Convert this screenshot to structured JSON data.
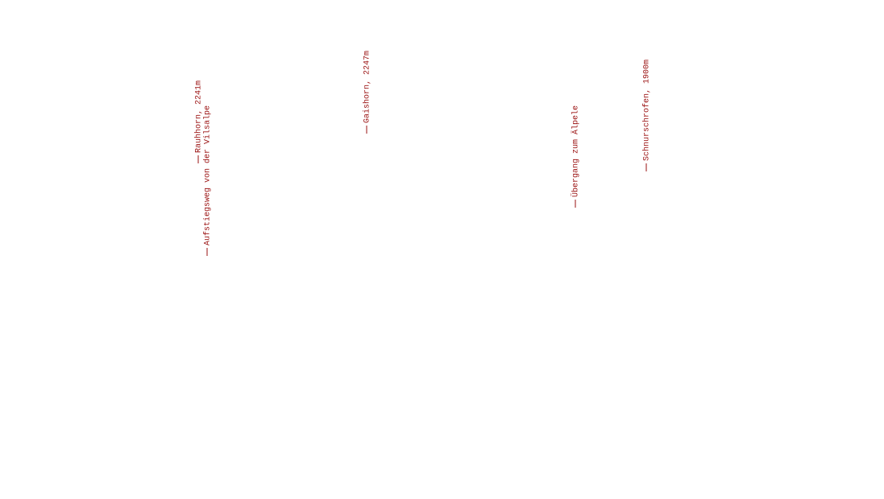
{
  "labels": [
    {
      "text": "Rauhhorn, 2241m"
    },
    {
      "text": "Aufstiegsweg von der Vilsalpe"
    },
    {
      "text": "Gaishorn, 2247m"
    },
    {
      "text": "Übergang zum Älpele"
    },
    {
      "text": "Schnurschrofen, 1900m"
    }
  ]
}
